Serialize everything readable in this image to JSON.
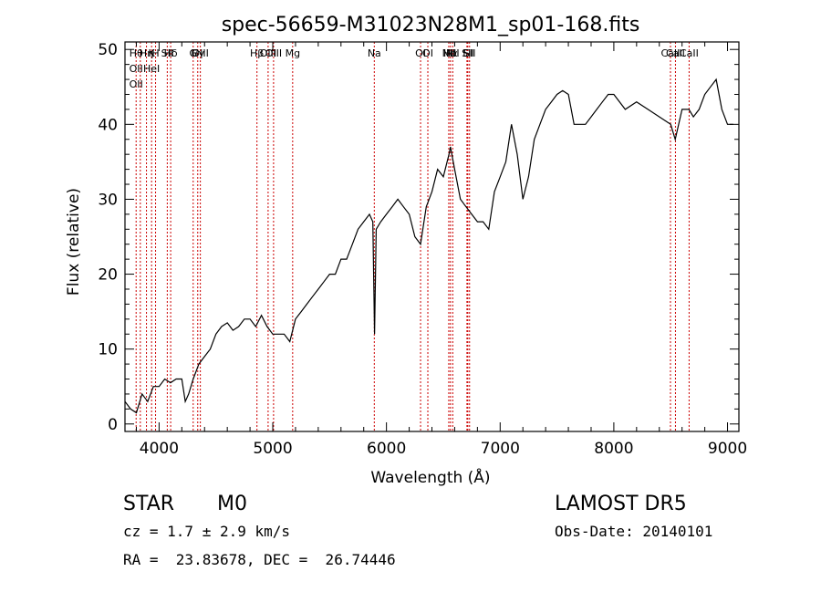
{
  "chart_data": {
    "type": "line",
    "title": "spec-56659-M31023N28M1_sp01-168.fits",
    "xlabel": "Wavelength (Å)",
    "ylabel": "Flux (relative)",
    "xlim": [
      3700,
      9100
    ],
    "ylim": [
      -1,
      51
    ],
    "xticks": [
      4000,
      5000,
      6000,
      7000,
      8000,
      9000
    ],
    "yticks": [
      0,
      10,
      20,
      30,
      40,
      50
    ],
    "grid": false,
    "line_color": "#000000",
    "marker_color": "#cc0000",
    "series": [
      {
        "x": [
          3700,
          3750,
          3800,
          3850,
          3900,
          3950,
          4000,
          4050,
          4100,
          4150,
          4200,
          4230,
          4260,
          4300,
          4350,
          4400,
          4450,
          4500,
          4550,
          4600,
          4650,
          4700,
          4750,
          4800,
          4850,
          4900,
          4950,
          5000,
          5050,
          5100,
          5150,
          5200,
          5250,
          5300,
          5350,
          5400,
          5450,
          5500,
          5550,
          5600,
          5650,
          5700,
          5750,
          5800,
          5850,
          5880,
          5895,
          5910,
          5950,
          6000,
          6050,
          6100,
          6150,
          6200,
          6250,
          6300,
          6350,
          6400,
          6450,
          6500,
          6550,
          6563,
          6600,
          6650,
          6700,
          6750,
          6800,
          6850,
          6900,
          6950,
          7000,
          7050,
          7100,
          7150,
          7200,
          7250,
          7300,
          7350,
          7400,
          7450,
          7500,
          7550,
          7600,
          7650,
          7700,
          7750,
          7800,
          7850,
          7900,
          7950,
          8000,
          8100,
          8200,
          8300,
          8400,
          8500,
          8540,
          8600,
          8660,
          8700,
          8750,
          8800,
          8850,
          8900,
          8950,
          9000,
          9050
        ],
        "y": [
          3,
          2,
          1.5,
          4,
          3,
          5,
          5,
          6,
          5.5,
          6,
          6,
          3,
          4,
          6,
          8,
          9,
          10,
          12,
          13,
          13.5,
          12.5,
          13,
          14,
          14,
          13,
          14.5,
          13,
          12,
          12,
          12,
          11,
          14,
          15,
          16,
          17,
          18,
          19,
          20,
          20,
          22,
          22,
          24,
          26,
          27,
          28,
          27,
          12,
          26,
          27,
          28,
          29,
          30,
          29,
          28,
          25,
          24,
          29,
          31,
          34,
          33,
          36,
          37,
          34,
          30,
          29,
          28,
          27,
          27,
          26,
          31,
          33,
          35,
          40,
          36,
          30,
          33,
          38,
          40,
          42,
          43,
          44,
          44.5,
          44,
          40,
          40,
          40,
          41,
          42,
          43,
          44,
          44,
          42,
          43,
          42,
          41,
          40,
          38,
          42,
          42,
          41,
          42,
          44,
          45,
          46,
          42,
          40,
          40
        ]
      }
    ],
    "lines": [
      {
        "x": 3798,
        "labels": [
          "Hθ",
          "OII",
          "OII"
        ]
      },
      {
        "x": 3835,
        "labels": []
      },
      {
        "x": 3889,
        "labels": [
          "Hη"
        ]
      },
      {
        "x": 3934,
        "labels": [
          "K",
          "HeI"
        ]
      },
      {
        "x": 3969,
        "labels": [
          "H"
        ]
      },
      {
        "x": 4072,
        "labels": [
          "SII"
        ]
      },
      {
        "x": 4102,
        "labels": [
          "Hδ"
        ]
      },
      {
        "x": 4300,
        "labels": [
          "G"
        ]
      },
      {
        "x": 4340,
        "labels": [
          "Hγ"
        ]
      },
      {
        "x": 4363,
        "labels": [
          "OIII"
        ]
      },
      {
        "x": 4861,
        "labels": [
          "Hβ"
        ]
      },
      {
        "x": 4959,
        "labels": [
          "OIII"
        ]
      },
      {
        "x": 5007,
        "labels": [
          "OIII"
        ]
      },
      {
        "x": 5175,
        "labels": [
          "Mg"
        ]
      },
      {
        "x": 5893,
        "labels": [
          "Na"
        ]
      },
      {
        "x": 6300,
        "labels": [
          "OI"
        ]
      },
      {
        "x": 6364,
        "labels": [
          "OI"
        ]
      },
      {
        "x": 6548,
        "labels": [
          "NII"
        ]
      },
      {
        "x": 6563,
        "labels": [
          "Hα"
        ]
      },
      {
        "x": 6583,
        "labels": [
          "NII"
        ]
      },
      {
        "x": 6708,
        "labels": [
          "Li"
        ]
      },
      {
        "x": 6716,
        "labels": [
          "SII"
        ]
      },
      {
        "x": 6731,
        "labels": [
          "SII"
        ]
      },
      {
        "x": 8498,
        "labels": [
          "CaII"
        ]
      },
      {
        "x": 8542,
        "labels": [
          "CaII"
        ]
      },
      {
        "x": 8662,
        "labels": [
          "CaII"
        ]
      }
    ]
  },
  "info": {
    "class": "STAR",
    "subclass": "M0",
    "survey": "LAMOST DR5",
    "cz_line": "cz = 1.7 ± 2.9 km/s",
    "obs_date": "Obs-Date: 20140101",
    "radec": "RA =  23.83678, DEC =  26.74446"
  }
}
